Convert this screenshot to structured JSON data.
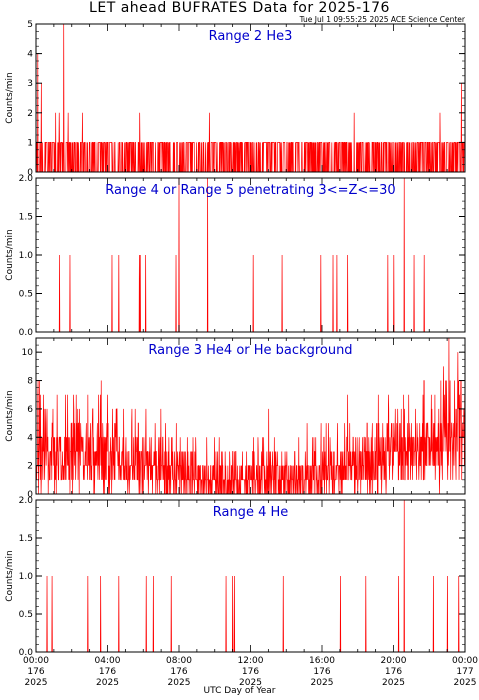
{
  "header": {
    "title": "LET ahead BUFRATES Data for 2025-176",
    "stamp": "Tue Jul  1 09:55:25 2025 ACE Science Center"
  },
  "x_axis": {
    "title": "UTC Day of Year",
    "ticks": [
      {
        "time": "00:00",
        "doy": "176",
        "year": "2025"
      },
      {
        "time": "04:00",
        "doy": "176",
        "year": "2025"
      },
      {
        "time": "08:00",
        "doy": "176",
        "year": "2025"
      },
      {
        "time": "12:00",
        "doy": "176",
        "year": "2025"
      },
      {
        "time": "16:00",
        "doy": "176",
        "year": "2025"
      },
      {
        "time": "20:00",
        "doy": "176",
        "year": "2025"
      },
      {
        "time": "00:00",
        "doy": "177",
        "year": "2025"
      }
    ]
  },
  "colors": {
    "series": "#ff0000",
    "label": "#0000cc",
    "axis": "#000000"
  },
  "chart_data": [
    {
      "type": "line",
      "title": "Range 2 He3",
      "ylabel": "Counts/min",
      "ylim": [
        0,
        5
      ],
      "yticks": [
        "0",
        "1",
        "2",
        "3",
        "4",
        "5"
      ],
      "xlim_hours": [
        0,
        24
      ],
      "baseline": "alternating 0-1 counts/min throughout the day",
      "spikes": [
        {
          "hour": 0.1,
          "value": 4
        },
        {
          "hour": 0.3,
          "value": 3
        },
        {
          "hour": 1.1,
          "value": 2
        },
        {
          "hour": 1.3,
          "value": 2
        },
        {
          "hour": 1.55,
          "value": 5
        },
        {
          "hour": 1.8,
          "value": 2
        },
        {
          "hour": 2.6,
          "value": 2
        },
        {
          "hour": 5.8,
          "value": 2
        },
        {
          "hour": 9.7,
          "value": 2
        },
        {
          "hour": 17.8,
          "value": 2
        },
        {
          "hour": 22.6,
          "value": 2
        },
        {
          "hour": 23.8,
          "value": 3
        }
      ]
    },
    {
      "type": "line",
      "title": "Range 4 or Range 5 penetrating 3<=Z<=30",
      "ylabel": "Counts/min",
      "ylim": [
        0,
        2
      ],
      "yticks": [
        "0.0",
        "0.5",
        "1.0",
        "1.5",
        "2.0"
      ],
      "xlim_hours": [
        0,
        24
      ],
      "baseline": "mostly 0 with isolated 1 counts/min",
      "spikes": [
        {
          "hour": 8.0,
          "value": 2
        },
        {
          "hour": 9.6,
          "value": 2
        },
        {
          "hour": 20.6,
          "value": 2
        }
      ]
    },
    {
      "type": "line",
      "title": "Range 3 He4 or He background",
      "ylabel": "Counts/min",
      "ylim": [
        0,
        11
      ],
      "yticks": [
        "0",
        "2",
        "4",
        "6",
        "8",
        "10"
      ],
      "xlim_hours": [
        0,
        24
      ],
      "profile": [
        {
          "hour": 0,
          "mean": 3.5
        },
        {
          "hour": 2,
          "mean": 2.8
        },
        {
          "hour": 4,
          "mean": 3
        },
        {
          "hour": 6,
          "mean": 2
        },
        {
          "hour": 10,
          "mean": 1.2
        },
        {
          "hour": 14,
          "mean": 1.2
        },
        {
          "hour": 17,
          "mean": 1.8
        },
        {
          "hour": 20,
          "mean": 3
        },
        {
          "hour": 24,
          "mean": 4.5
        }
      ],
      "spikes": [
        {
          "hour": 0.2,
          "value": 8
        },
        {
          "hour": 3.6,
          "value": 7
        },
        {
          "hour": 22.8,
          "value": 9
        },
        {
          "hour": 23.1,
          "value": 11
        },
        {
          "hour": 23.6,
          "value": 10
        }
      ]
    },
    {
      "type": "line",
      "title": "Range 4 He",
      "ylabel": "Counts/min",
      "ylim": [
        0,
        2
      ],
      "yticks": [
        "0.0",
        "0.5",
        "1.0",
        "1.5",
        "2.0"
      ],
      "xlim_hours": [
        0,
        24
      ],
      "baseline": "mostly 0 with isolated 1 counts/min",
      "spikes": [
        {
          "hour": 20.6,
          "value": 2
        }
      ]
    }
  ]
}
